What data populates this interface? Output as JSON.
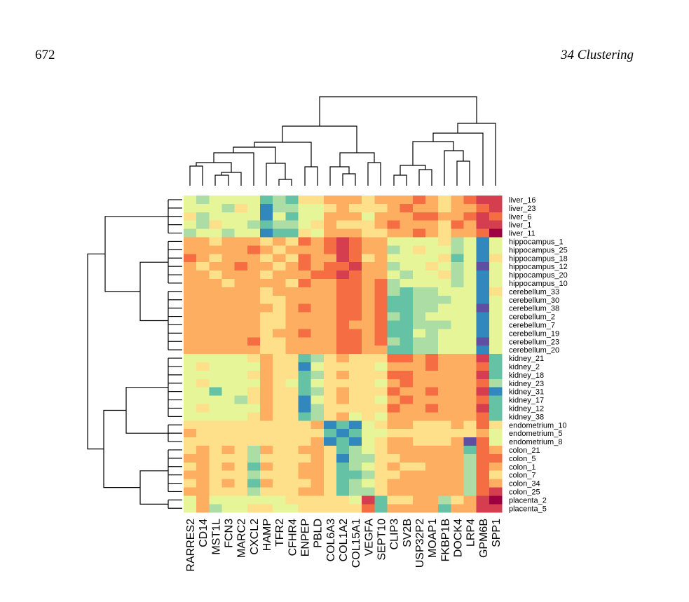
{
  "page": {
    "number": "672",
    "running_head": "34 Clustering"
  },
  "chart_data": {
    "type": "heatmap",
    "x_categories": [
      "RARRES2",
      "CD14",
      "MST1L",
      "FCN3",
      "MARC2",
      "CXCL2",
      "HAMP",
      "TFR2",
      "CFHR4",
      "ENPEP",
      "PBLD",
      "COL6A3",
      "COL1A2",
      "COL15A1",
      "VEGFA",
      "SEPT10",
      "CLIP3",
      "SV2B",
      "USP32P2",
      "MOAP1",
      "FKBP1B",
      "DOCK4",
      "LRP4",
      "GPM6B",
      "SPP1"
    ],
    "y_categories": [
      "liver_16",
      "liver_23",
      "liver_6",
      "liver_1",
      "liver_11",
      "hippocampus_1",
      "hippocampus_25",
      "hippocampus_18",
      "hippocampus_12",
      "hippocampus_20",
      "hippocampus_10",
      "cerebellum_33",
      "cerebellum_30",
      "cerebellum_38",
      "cerebellum_2",
      "cerebellum_7",
      "cerebellum_19",
      "cerebellum_23",
      "cerebellum_20",
      "kidney_21",
      "kidney_2",
      "kidney_18",
      "kidney_23",
      "kidney_31",
      "kidney_17",
      "kidney_12",
      "kidney_38",
      "endometrium_10",
      "endometrium_5",
      "endometrium_8",
      "colon_21",
      "colon_5",
      "colon_1",
      "colon_7",
      "colon_34",
      "colon_25",
      "placenta_2",
      "placenta_5"
    ],
    "zlim": [
      1,
      10
    ],
    "colorscale": [
      "#5e4fa2",
      "#3288bd",
      "#66c2a5",
      "#abdda4",
      "#e6f598",
      "#fee08b",
      "#fdae61",
      "#f46d43",
      "#d53e4f",
      "#9e0142"
    ],
    "values": [
      [
        5,
        4,
        5,
        5,
        5,
        5,
        3,
        4,
        3,
        6,
        6,
        7,
        7,
        7,
        6,
        7,
        7,
        7,
        8,
        7,
        6,
        7,
        8,
        9,
        9
      ],
      [
        5,
        5,
        5,
        4,
        6,
        5,
        2,
        4,
        4,
        5,
        5,
        6,
        7,
        6,
        6,
        6,
        7,
        8,
        7,
        7,
        6,
        7,
        7,
        8,
        9
      ],
      [
        6,
        4,
        5,
        5,
        5,
        5,
        2,
        5,
        3,
        5,
        5,
        7,
        7,
        7,
        5,
        7,
        7,
        7,
        8,
        8,
        7,
        7,
        8,
        9,
        8
      ],
      [
        5,
        4,
        6,
        5,
        5,
        4,
        3,
        4,
        4,
        5,
        6,
        7,
        6,
        6,
        6,
        7,
        8,
        7,
        7,
        7,
        6,
        8,
        7,
        9,
        9
      ],
      [
        4,
        5,
        5,
        4,
        5,
        5,
        2,
        3,
        3,
        6,
        5,
        7,
        7,
        7,
        6,
        6,
        7,
        7,
        8,
        7,
        6,
        7,
        7,
        8,
        10
      ],
      [
        7,
        7,
        6,
        7,
        7,
        7,
        6,
        7,
        6,
        8,
        7,
        8,
        9,
        8,
        7,
        7,
        5,
        5,
        5,
        5,
        6,
        4,
        5,
        2,
        5
      ],
      [
        7,
        7,
        7,
        7,
        7,
        8,
        7,
        6,
        7,
        7,
        7,
        8,
        9,
        8,
        7,
        7,
        4,
        5,
        6,
        5,
        5,
        4,
        5,
        2,
        5
      ],
      [
        8,
        7,
        6,
        7,
        7,
        7,
        6,
        7,
        6,
        8,
        7,
        7,
        9,
        8,
        6,
        7,
        5,
        5,
        5,
        5,
        6,
        3,
        5,
        2,
        6
      ],
      [
        7,
        6,
        7,
        7,
        8,
        7,
        7,
        6,
        7,
        8,
        7,
        8,
        8,
        9,
        7,
        7,
        4,
        5,
        5,
        6,
        5,
        4,
        5,
        1,
        5
      ],
      [
        7,
        7,
        6,
        7,
        7,
        7,
        6,
        7,
        7,
        7,
        8,
        8,
        9,
        8,
        7,
        7,
        5,
        4,
        5,
        5,
        6,
        4,
        5,
        2,
        5
      ],
      [
        7,
        7,
        7,
        6,
        7,
        7,
        7,
        7,
        6,
        8,
        7,
        7,
        8,
        8,
        7,
        8,
        4,
        5,
        5,
        5,
        5,
        4,
        5,
        2,
        5
      ],
      [
        7,
        7,
        7,
        7,
        7,
        7,
        6,
        7,
        7,
        7,
        7,
        7,
        8,
        8,
        7,
        8,
        4,
        3,
        4,
        4,
        5,
        5,
        5,
        2,
        6
      ],
      [
        7,
        7,
        7,
        7,
        7,
        7,
        6,
        6,
        7,
        7,
        7,
        7,
        8,
        8,
        7,
        8,
        3,
        3,
        4,
        4,
        4,
        5,
        5,
        2,
        5
      ],
      [
        7,
        7,
        7,
        7,
        7,
        7,
        7,
        6,
        7,
        8,
        7,
        7,
        8,
        8,
        7,
        8,
        3,
        3,
        4,
        4,
        5,
        5,
        5,
        1,
        5
      ],
      [
        7,
        7,
        7,
        7,
        7,
        7,
        6,
        6,
        7,
        7,
        7,
        7,
        8,
        8,
        7,
        8,
        4,
        3,
        4,
        5,
        5,
        5,
        5,
        2,
        5
      ],
      [
        7,
        7,
        7,
        7,
        7,
        7,
        6,
        6,
        7,
        7,
        7,
        7,
        8,
        7,
        7,
        8,
        3,
        3,
        4,
        4,
        4,
        5,
        5,
        2,
        5
      ],
      [
        7,
        7,
        7,
        7,
        7,
        7,
        6,
        7,
        7,
        8,
        7,
        7,
        8,
        8,
        7,
        8,
        3,
        3,
        5,
        4,
        5,
        5,
        5,
        2,
        5
      ],
      [
        7,
        7,
        7,
        7,
        7,
        8,
        6,
        6,
        7,
        7,
        7,
        7,
        8,
        8,
        7,
        8,
        4,
        3,
        4,
        4,
        5,
        5,
        5,
        1,
        5
      ],
      [
        7,
        7,
        7,
        7,
        7,
        7,
        6,
        6,
        7,
        7,
        7,
        7,
        8,
        8,
        7,
        7,
        3,
        3,
        4,
        4,
        5,
        5,
        5,
        2,
        5
      ],
      [
        5,
        5,
        5,
        5,
        5,
        6,
        7,
        6,
        6,
        3,
        4,
        6,
        7,
        6,
        6,
        6,
        8,
        8,
        7,
        8,
        7,
        7,
        7,
        9,
        3
      ],
      [
        5,
        6,
        5,
        5,
        5,
        5,
        7,
        6,
        6,
        2,
        5,
        6,
        6,
        6,
        6,
        5,
        7,
        7,
        7,
        8,
        7,
        7,
        7,
        8,
        3
      ],
      [
        5,
        5,
        5,
        5,
        5,
        6,
        7,
        6,
        6,
        3,
        4,
        6,
        7,
        6,
        6,
        6,
        8,
        8,
        7,
        7,
        7,
        7,
        7,
        9,
        3
      ],
      [
        5,
        6,
        5,
        5,
        5,
        5,
        7,
        6,
        5,
        3,
        5,
        6,
        6,
        6,
        6,
        5,
        7,
        8,
        7,
        7,
        7,
        7,
        7,
        8,
        4
      ],
      [
        5,
        5,
        3,
        5,
        5,
        6,
        7,
        6,
        6,
        3,
        4,
        6,
        7,
        6,
        6,
        6,
        8,
        7,
        7,
        8,
        7,
        7,
        7,
        9,
        2
      ],
      [
        5,
        5,
        5,
        5,
        4,
        6,
        7,
        6,
        6,
        2,
        5,
        6,
        7,
        6,
        6,
        5,
        7,
        8,
        7,
        7,
        7,
        7,
        7,
        8,
        3
      ],
      [
        5,
        6,
        5,
        5,
        5,
        5,
        7,
        6,
        6,
        2,
        4,
        6,
        6,
        6,
        6,
        6,
        8,
        7,
        7,
        8,
        7,
        7,
        7,
        9,
        3
      ],
      [
        5,
        5,
        5,
        5,
        5,
        6,
        7,
        6,
        6,
        3,
        4,
        6,
        7,
        5,
        6,
        5,
        7,
        7,
        7,
        7,
        7,
        7,
        7,
        8,
        3
      ],
      [
        6,
        6,
        6,
        6,
        6,
        6,
        6,
        6,
        6,
        6,
        7,
        2,
        3,
        2,
        5,
        6,
        7,
        7,
        6,
        6,
        6,
        7,
        6,
        8,
        6
      ],
      [
        7,
        6,
        6,
        6,
        6,
        6,
        6,
        6,
        6,
        6,
        6,
        3,
        2,
        3,
        5,
        5,
        6,
        6,
        6,
        6,
        6,
        6,
        6,
        7,
        5
      ],
      [
        6,
        6,
        6,
        6,
        6,
        6,
        6,
        6,
        6,
        6,
        7,
        2,
        3,
        2,
        5,
        6,
        7,
        7,
        6,
        6,
        6,
        7,
        1,
        8,
        5
      ],
      [
        6,
        7,
        6,
        7,
        6,
        4,
        7,
        6,
        6,
        7,
        7,
        6,
        3,
        4,
        5,
        6,
        7,
        7,
        7,
        7,
        7,
        7,
        3,
        8,
        7
      ],
      [
        7,
        7,
        6,
        6,
        6,
        4,
        6,
        6,
        6,
        6,
        7,
        6,
        2,
        4,
        4,
        6,
        6,
        7,
        7,
        7,
        7,
        7,
        4,
        8,
        8
      ],
      [
        6,
        7,
        6,
        7,
        6,
        3,
        7,
        6,
        6,
        7,
        7,
        6,
        3,
        4,
        5,
        6,
        7,
        6,
        6,
        7,
        7,
        7,
        4,
        8,
        7
      ],
      [
        7,
        7,
        6,
        6,
        6,
        4,
        6,
        6,
        6,
        7,
        7,
        6,
        3,
        3,
        4,
        6,
        6,
        7,
        7,
        7,
        7,
        7,
        4,
        8,
        6
      ],
      [
        6,
        7,
        6,
        7,
        6,
        3,
        7,
        6,
        6,
        6,
        7,
        6,
        3,
        4,
        5,
        6,
        7,
        7,
        7,
        7,
        7,
        7,
        4,
        8,
        7
      ],
      [
        7,
        7,
        6,
        6,
        6,
        4,
        6,
        6,
        6,
        7,
        7,
        6,
        3,
        4,
        4,
        6,
        7,
        7,
        7,
        7,
        7,
        7,
        4,
        8,
        9
      ],
      [
        5,
        7,
        5,
        5,
        5,
        5,
        5,
        5,
        6,
        6,
        6,
        6,
        6,
        5,
        9,
        3,
        6,
        6,
        7,
        7,
        4,
        6,
        7,
        9,
        10
      ],
      [
        5,
        7,
        4,
        5,
        5,
        6,
        6,
        5,
        5,
        6,
        6,
        6,
        6,
        6,
        8,
        3,
        7,
        7,
        7,
        7,
        3,
        7,
        7,
        9,
        9
      ]
    ]
  }
}
